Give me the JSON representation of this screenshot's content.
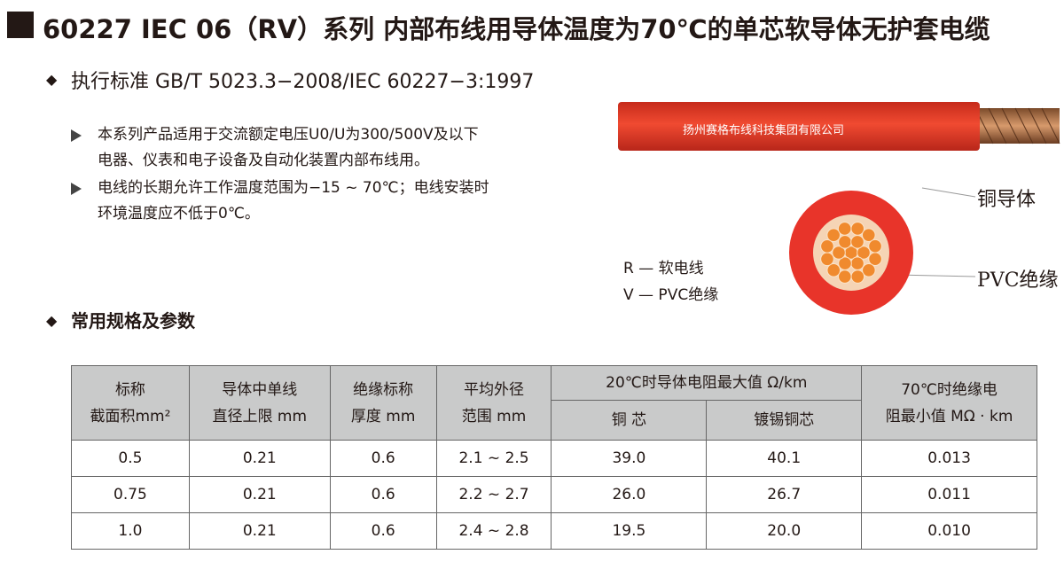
{
  "header": {
    "title": "60227 IEC 06（RV）系列 内部布线用导体温度为70℃的单芯软导体无护套电缆"
  },
  "standard": "执行标准 GB/T 5023.3−2008/IEC 60227−3:1997",
  "notes": [
    {
      "lines": [
        "本系列产品适用于交流额定电压U0/U为300/500V及以下",
        "电器、仪表和电子设备及自动化装置内部布线用。"
      ]
    },
    {
      "lines": [
        "电线的长期允许工作温度范围为−15 ~ 70℃；电线安装时",
        "环境温度应不低于0℃。"
      ]
    }
  ],
  "cable_label": "扬州赛格布线科技集团有限公司",
  "legend": [
    "R — 软电线",
    "V — PVC绝缘"
  ],
  "diagram_labels": {
    "conductor": "铜导体",
    "insulation": "PVC绝缘"
  },
  "section": "常用规格及参数",
  "table": {
    "header": [
      {
        "lines": [
          "标称",
          "截面积mm²"
        ]
      },
      {
        "lines": [
          "导体中单线",
          "直径上限 mm"
        ]
      },
      {
        "lines": [
          "绝缘标称",
          "厚度 mm"
        ]
      },
      {
        "lines": [
          "平均外径",
          "范围 mm"
        ]
      },
      {
        "lines": [
          "20℃时导体电阻最大值 Ω/km"
        ]
      },
      {
        "lines": [
          "70℃时绝缘电",
          "阻最小值 MΩ · km"
        ]
      }
    ],
    "subheader": [
      "铜 芯",
      "镀锡铜芯"
    ],
    "rows": [
      [
        "0.5",
        "0.21",
        "0.6",
        "2.1 ~ 2.5",
        "39.0",
        "40.1",
        "0.013"
      ],
      [
        "0.75",
        "0.21",
        "0.6",
        "2.2 ~ 2.7",
        "26.0",
        "26.7",
        "0.011"
      ],
      [
        "1.0",
        "0.21",
        "0.6",
        "2.4 ~ 2.8",
        "19.5",
        "20.0",
        "0.010"
      ]
    ]
  }
}
